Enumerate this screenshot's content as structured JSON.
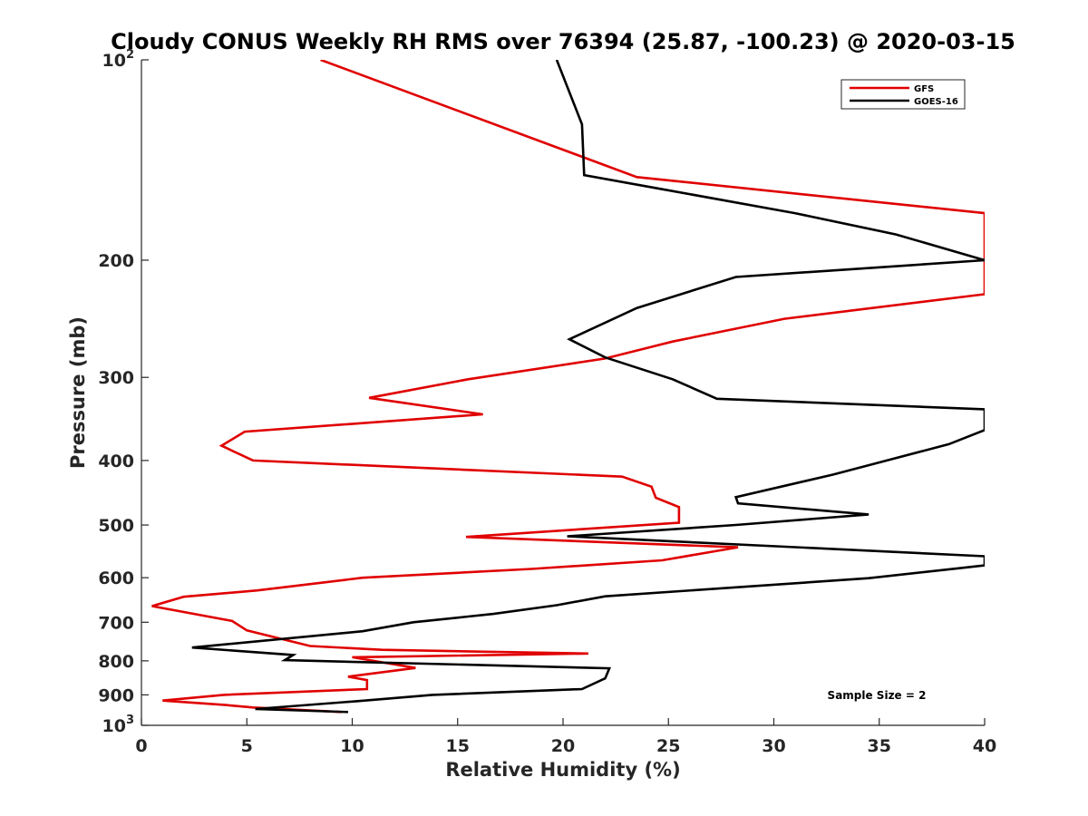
{
  "chart_data": {
    "type": "line",
    "title": "Cloudy CONUS Weekly RH RMS over 76394 (25.87, -100.23) @ 2020-03-15",
    "xlabel": "Relative Humidity (%)",
    "ylabel": "Pressure (mb)",
    "xlim": [
      0,
      40
    ],
    "ylim": [
      100,
      1000
    ],
    "yscale": "log",
    "y_reversed": true,
    "grid": false,
    "legend_position": "top-right",
    "x_ticks": [
      "0",
      "5",
      "10",
      "15",
      "20",
      "25",
      "30",
      "35",
      "40"
    ],
    "y_ticks": [
      {
        "value": 100,
        "base": "10",
        "exp": "2"
      },
      {
        "value": 200,
        "label": "200"
      },
      {
        "value": 300,
        "label": "300"
      },
      {
        "value": 400,
        "label": "400"
      },
      {
        "value": 500,
        "label": "500"
      },
      {
        "value": 600,
        "label": "600"
      },
      {
        "value": 700,
        "label": "700"
      },
      {
        "value": 800,
        "label": "800"
      },
      {
        "value": 900,
        "label": "900"
      },
      {
        "value": 1000,
        "base": "10",
        "exp": "3"
      }
    ],
    "annotation": "Sample Size = 2",
    "series": [
      {
        "name": "GFS",
        "color": "#e00000",
        "points": [
          [
            8.5,
            100
          ],
          [
            23.5,
            150
          ],
          [
            40.0,
            170
          ],
          [
            40.0,
            225
          ],
          [
            30.5,
            245
          ],
          [
            25.2,
            265
          ],
          [
            22.0,
            281
          ],
          [
            15.5,
            302
          ],
          [
            10.8,
            322
          ],
          [
            16.2,
            341
          ],
          [
            4.9,
            362
          ],
          [
            3.8,
            380
          ],
          [
            5.3,
            400
          ],
          [
            22.8,
            423
          ],
          [
            24.2,
            438
          ],
          [
            24.4,
            455
          ],
          [
            25.5,
            470
          ],
          [
            25.5,
            496
          ],
          [
            15.4,
            521
          ],
          [
            28.3,
            540
          ],
          [
            24.7,
            565
          ],
          [
            18.5,
            582
          ],
          [
            10.5,
            600
          ],
          [
            5.5,
            627
          ],
          [
            2.0,
            641
          ],
          [
            0.5,
            662
          ],
          [
            4.3,
            697
          ],
          [
            5.0,
            720
          ],
          [
            8.0,
            760
          ],
          [
            11.4,
            770
          ],
          [
            21.2,
            780
          ],
          [
            10.0,
            790
          ],
          [
            13.0,
            820
          ],
          [
            9.8,
            845
          ],
          [
            10.7,
            855
          ],
          [
            10.7,
            882
          ],
          [
            3.9,
            900
          ],
          [
            1.0,
            918
          ],
          [
            4.0,
            932
          ],
          [
            5.3,
            940
          ],
          [
            9.5,
            955
          ]
        ]
      },
      {
        "name": "GOES-16",
        "color": "#000000",
        "points": [
          [
            19.7,
            100
          ],
          [
            20.9,
            125
          ],
          [
            21.0,
            149
          ],
          [
            24.5,
            156
          ],
          [
            31.0,
            170
          ],
          [
            35.8,
            183
          ],
          [
            40.0,
            200
          ],
          [
            28.2,
            212
          ],
          [
            23.5,
            236
          ],
          [
            20.3,
            263
          ],
          [
            22.0,
            280
          ],
          [
            25.2,
            302
          ],
          [
            27.3,
            323
          ],
          [
            40.0,
            335
          ],
          [
            40.0,
            360
          ],
          [
            38.3,
            378
          ],
          [
            32.8,
            420
          ],
          [
            28.2,
            454
          ],
          [
            28.3,
            464
          ],
          [
            34.5,
            482
          ],
          [
            28.2,
            500
          ],
          [
            20.2,
            520
          ],
          [
            40.0,
            557
          ],
          [
            40.0,
            575
          ],
          [
            38.9,
            580
          ],
          [
            34.5,
            601
          ],
          [
            22.0,
            640
          ],
          [
            19.7,
            660
          ],
          [
            16.7,
            680
          ],
          [
            12.9,
            700
          ],
          [
            10.5,
            722
          ],
          [
            2.4,
            764
          ],
          [
            7.2,
            784
          ],
          [
            6.8,
            798
          ],
          [
            22.2,
            821
          ],
          [
            22.0,
            850
          ],
          [
            20.9,
            882
          ],
          [
            13.8,
            900
          ],
          [
            10.2,
            920
          ],
          [
            5.4,
            945
          ],
          [
            9.8,
            955
          ]
        ]
      }
    ]
  }
}
